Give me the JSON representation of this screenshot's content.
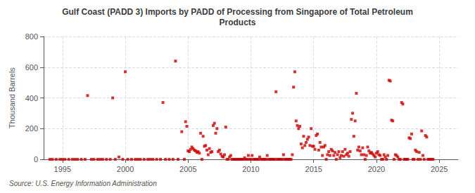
{
  "chart_data": {
    "type": "scatter",
    "title": "Gulf Coast (PADD 3) Imports by PADD of Processing from Singapore of Total Petroleum\nProducts",
    "ylabel": "Thousand Barrels",
    "annotations": [
      "Source: U.S. Energy Information Administration"
    ],
    "color": "#cc0000",
    "marker": "square",
    "grid": true,
    "xlim": [
      1993.5,
      2026.5
    ],
    "ylim": [
      0,
      800
    ],
    "xticks": [
      1995,
      2000,
      2005,
      2010,
      2015,
      2020,
      2025
    ],
    "yticks": [
      0,
      200,
      400,
      600,
      800
    ],
    "x": [
      1994.0,
      1994.2,
      1994.5,
      1994.8,
      1995.0,
      1995.2,
      1995.5,
      1995.8,
      1996.0,
      1996.2,
      1996.5,
      1996.8,
      1997.0,
      1997.3,
      1997.5,
      1997.8,
      1998.0,
      1998.2,
      1998.5,
      1998.8,
      1999.0,
      1999.2,
      1999.5,
      1999.8,
      2000.0,
      2000.2,
      2000.5,
      2000.8,
      2001.0,
      2001.2,
      2001.5,
      2001.8,
      2002.0,
      2002.2,
      2002.5,
      2002.8,
      2003.0,
      2003.2,
      2003.5,
      2003.8,
      2004.0,
      2004.2,
      2004.5,
      2004.7,
      2004.8,
      2004.9,
      2005.0,
      2005.1,
      2005.2,
      2005.3,
      2005.4,
      2005.5,
      2005.6,
      2005.7,
      2005.8,
      2005.9,
      2006.0,
      2006.1,
      2006.2,
      2006.3,
      2006.4,
      2006.5,
      2006.6,
      2006.7,
      2006.8,
      2006.9,
      2007.0,
      2007.1,
      2007.2,
      2007.3,
      2007.4,
      2007.5,
      2007.6,
      2007.7,
      2007.8,
      2007.9,
      2008.0,
      2008.1,
      2008.2,
      2008.3,
      2008.4,
      2008.5,
      2008.6,
      2008.7,
      2008.8,
      2008.9,
      2009.0,
      2009.1,
      2009.2,
      2009.3,
      2009.4,
      2009.5,
      2009.6,
      2009.7,
      2009.8,
      2009.9,
      2010.0,
      2010.1,
      2010.2,
      2010.3,
      2010.4,
      2010.5,
      2010.6,
      2010.7,
      2010.8,
      2010.9,
      2011.0,
      2011.1,
      2011.2,
      2011.3,
      2011.4,
      2011.5,
      2011.6,
      2011.7,
      2011.8,
      2011.9,
      2012.0,
      2012.1,
      2012.2,
      2012.3,
      2012.4,
      2012.5,
      2012.6,
      2012.7,
      2012.8,
      2012.9,
      2013.0,
      2013.1,
      2013.2,
      2013.3,
      2013.4,
      2013.5,
      2013.6,
      2013.7,
      2013.8,
      2013.9,
      2014.0,
      2014.1,
      2014.2,
      2014.3,
      2014.4,
      2014.5,
      2014.6,
      2014.7,
      2014.8,
      2014.9,
      2015.0,
      2015.1,
      2015.2,
      2015.3,
      2015.4,
      2015.5,
      2015.6,
      2015.7,
      2015.8,
      2015.9,
      2016.0,
      2016.1,
      2016.2,
      2016.3,
      2016.4,
      2016.5,
      2016.6,
      2016.7,
      2016.8,
      2016.9,
      2017.0,
      2017.1,
      2017.2,
      2017.3,
      2017.4,
      2017.5,
      2017.6,
      2017.7,
      2017.8,
      2017.9,
      2018.0,
      2018.1,
      2018.2,
      2018.3,
      2018.4,
      2018.5,
      2018.6,
      2018.7,
      2018.8,
      2018.9,
      2019.0,
      2019.1,
      2019.2,
      2019.3,
      2019.4,
      2019.5,
      2019.6,
      2019.7,
      2019.8,
      2019.9,
      2020.0,
      2020.1,
      2020.2,
      2020.3,
      2020.4,
      2020.5,
      2020.6,
      2020.7,
      2020.8,
      2020.9,
      2021.0,
      2021.1,
      2021.2,
      2021.3,
      2021.4,
      2021.5,
      2021.6,
      2021.7,
      2021.8,
      2021.9,
      2022.0,
      2022.1,
      2022.2,
      2022.3,
      2022.4,
      2022.5,
      2022.6,
      2022.7,
      2022.8,
      2022.9,
      2023.0,
      2023.1,
      2023.2,
      2023.3,
      2023.4,
      2023.5,
      2023.6,
      2023.7,
      2023.8,
      2023.9,
      2024.0,
      2024.1,
      2024.2,
      2024.3,
      2024.4,
      2024.5
    ],
    "values": [
      0,
      0,
      0,
      0,
      0,
      0,
      0,
      0,
      0,
      0,
      0,
      0,
      415,
      0,
      0,
      0,
      0,
      0,
      0,
      0,
      400,
      0,
      15,
      0,
      570,
      0,
      0,
      0,
      0,
      0,
      0,
      0,
      0,
      0,
      0,
      0,
      370,
      0,
      0,
      0,
      640,
      0,
      180,
      0,
      245,
      215,
      55,
      50,
      65,
      80,
      70,
      60,
      55,
      45,
      50,
      40,
      170,
      0,
      150,
      85,
      90,
      60,
      30,
      70,
      45,
      50,
      220,
      235,
      170,
      200,
      50,
      60,
      35,
      20,
      15,
      30,
      210,
      0,
      0,
      15,
      25,
      0,
      0,
      0,
      0,
      0,
      0,
      0,
      0,
      0,
      0,
      10,
      0,
      0,
      25,
      0,
      0,
      25,
      0,
      0,
      0,
      0,
      0,
      15,
      0,
      0,
      0,
      0,
      0,
      25,
      0,
      0,
      0,
      0,
      0,
      0,
      440,
      0,
      0,
      0,
      0,
      0,
      30,
      0,
      0,
      0,
      0,
      0,
      0,
      30,
      470,
      570,
      250,
      220,
      200,
      215,
      100,
      75,
      150,
      90,
      110,
      130,
      145,
      90,
      200,
      85,
      85,
      65,
      155,
      165,
      60,
      110,
      80,
      25,
      80,
      90,
      0,
      30,
      50,
      25,
      65,
      55,
      25,
      45,
      0,
      30,
      50,
      10,
      25,
      50,
      20,
      65,
      30,
      40,
      20,
      50,
      260,
      300,
      150,
      250,
      430,
      60,
      80,
      55,
      30,
      75,
      30,
      0,
      25,
      80,
      55,
      40,
      45,
      35,
      25,
      15,
      40,
      50,
      30,
      25,
      0,
      0,
      30,
      15,
      0,
      25,
      515,
      510,
      255,
      250,
      0,
      30,
      25,
      15,
      0,
      0,
      370,
      360,
      0,
      0,
      0,
      0,
      140,
      135,
      165,
      0,
      0,
      60,
      50,
      0,
      45,
      0,
      185,
      25,
      0,
      155,
      145,
      0,
      0,
      0,
      0,
      0
    ]
  }
}
